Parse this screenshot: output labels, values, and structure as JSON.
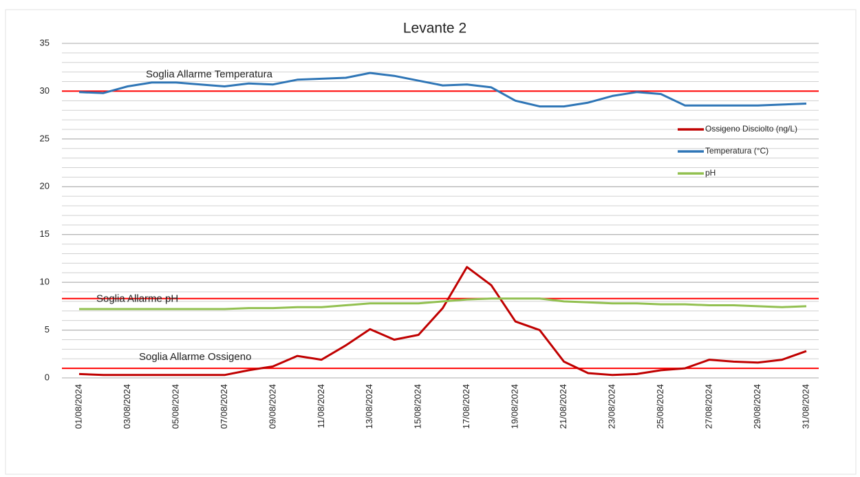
{
  "chart_data": {
    "type": "line",
    "title": "Levante 2",
    "categories": [
      "01/08/2024",
      null,
      "03/08/2024",
      null,
      "05/08/2024",
      null,
      "07/08/2024",
      null,
      "09/08/2024",
      null,
      "11/08/2024",
      null,
      "13/08/2024",
      null,
      "15/08/2024",
      null,
      "17/08/2024",
      null,
      "19/08/2024",
      null,
      "21/08/2024",
      null,
      "23/08/2024",
      null,
      "25/08/2024",
      null,
      "27/08/2024",
      null,
      "29/08/2024",
      null,
      "31/08/2024"
    ],
    "series": [
      {
        "name": "Ossigeno  Disciolto (ng/L)",
        "color": "#c00000",
        "values": [
          0.4,
          0.3,
          0.3,
          0.3,
          0.3,
          0.3,
          0.3,
          0.8,
          1.2,
          2.3,
          1.9,
          3.4,
          5.1,
          4.0,
          4.5,
          7.3,
          11.6,
          9.7,
          5.9,
          5.0,
          1.7,
          0.5,
          0.3,
          0.4,
          0.8,
          1.0,
          1.9,
          1.7,
          1.6,
          1.9,
          2.8
        ]
      },
      {
        "name": "Temperatura (°C)",
        "color": "#2e75b6",
        "values": [
          29.9,
          29.8,
          30.5,
          30.9,
          30.9,
          30.7,
          30.5,
          30.8,
          30.7,
          31.2,
          31.3,
          31.4,
          31.9,
          31.6,
          31.1,
          30.6,
          30.7,
          30.4,
          29.0,
          28.4,
          28.4,
          28.8,
          29.5,
          29.9,
          29.7,
          28.5,
          28.5,
          28.5,
          28.5,
          28.6,
          28.7
        ]
      },
      {
        "name": "pH",
        "color": "#92c050",
        "values": [
          7.2,
          7.2,
          7.2,
          7.2,
          7.2,
          7.2,
          7.2,
          7.3,
          7.3,
          7.4,
          7.4,
          7.6,
          7.8,
          7.8,
          7.8,
          8.0,
          8.2,
          8.3,
          8.3,
          8.3,
          8.0,
          7.9,
          7.8,
          7.8,
          7.7,
          7.7,
          7.6,
          7.6,
          7.5,
          7.4,
          7.5
        ]
      }
    ],
    "annotations": [
      {
        "text": "Soglia Allarme Temperatura",
        "value": 30,
        "color": "#ff0000"
      },
      {
        "text": "Soglia  Allarme pH",
        "value": 8.3,
        "color": "#ff0000"
      },
      {
        "text": "Soglia  Allarme Ossigeno",
        "value": 1,
        "color": "#ff0000"
      }
    ],
    "ylim": [
      0,
      35
    ],
    "yticks": [
      0,
      5,
      10,
      15,
      20,
      25,
      30,
      35
    ],
    "grid": true,
    "minor_grid_step": 1,
    "legend": "right"
  }
}
